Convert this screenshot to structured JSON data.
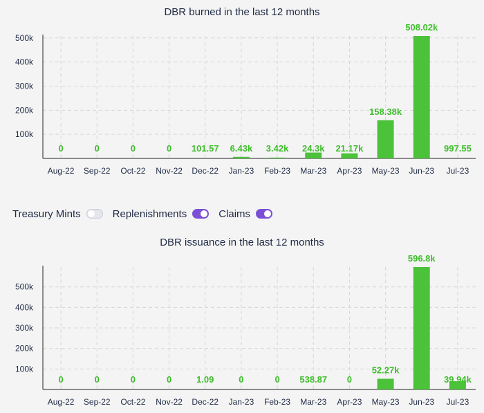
{
  "toggles": [
    {
      "label": "Treasury Mints",
      "on": false
    },
    {
      "label": "Replenishments",
      "on": true
    },
    {
      "label": "Claims",
      "on": true
    }
  ],
  "colors": {
    "bar": "#4cc23a",
    "label": "#3fbe2c",
    "axis": "#222222",
    "grid": "#d6d6d6",
    "tick": "#1f2a44",
    "toggle_on": "#7a4fd6"
  },
  "chart_data": [
    {
      "type": "bar",
      "title": "DBR burned in the last 12 months",
      "categories": [
        "Aug-22",
        "Sep-22",
        "Oct-22",
        "Nov-22",
        "Dec-22",
        "Jan-23",
        "Feb-23",
        "Mar-23",
        "Apr-23",
        "May-23",
        "Jun-23",
        "Jul-23"
      ],
      "values": [
        0,
        0,
        0,
        0,
        101.57,
        6430,
        3420,
        24300,
        21170,
        158380,
        508020,
        997.55
      ],
      "data_labels": [
        "0",
        "0",
        "0",
        "0",
        "101.57",
        "6.43k",
        "3.42k",
        "24.3k",
        "21.17k",
        "158.38k",
        "508.02k",
        "997.55"
      ],
      "yticks": [
        100000,
        200000,
        300000,
        400000,
        500000
      ],
      "ytick_labels": [
        "100k",
        "200k",
        "300k",
        "400k",
        "500k"
      ],
      "ylim": [
        0,
        508020
      ],
      "grid": true,
      "legend": "none"
    },
    {
      "type": "bar",
      "title": "DBR issuance in the last 12 months",
      "categories": [
        "Aug-22",
        "Sep-22",
        "Oct-22",
        "Nov-22",
        "Dec-22",
        "Jan-23",
        "Feb-23",
        "Mar-23",
        "Apr-23",
        "May-23",
        "Jun-23",
        "Jul-23"
      ],
      "values": [
        0,
        0,
        0,
        0,
        1.09,
        0,
        0,
        538.87,
        0,
        52270,
        596800,
        39940
      ],
      "data_labels": [
        "0",
        "0",
        "0",
        "0",
        "1.09",
        "0",
        "0",
        "538.87",
        "0",
        "52.27k",
        "596.8k",
        "39.94k"
      ],
      "yticks": [
        100000,
        200000,
        300000,
        400000,
        500000
      ],
      "ytick_labels": [
        "100k",
        "200k",
        "300k",
        "400k",
        "500k"
      ],
      "ylim": [
        0,
        596800
      ],
      "grid": true,
      "legend": "none"
    }
  ]
}
